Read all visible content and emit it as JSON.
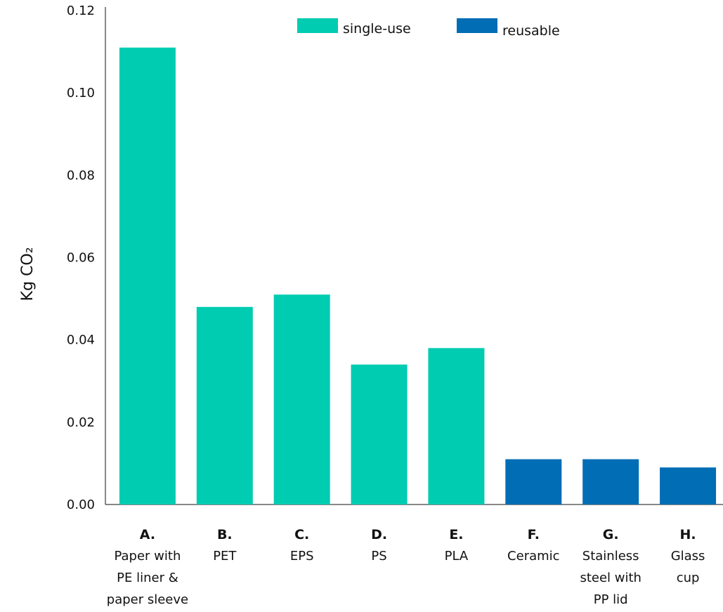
{
  "chart_data": {
    "type": "bar",
    "ylabel": "Kg CO₂",
    "ylim": [
      0,
      0.12
    ],
    "yticks": [
      "0.00",
      "0.02",
      "0.04",
      "0.06",
      "0.08",
      "0.10",
      "0.12"
    ],
    "categories": [
      {
        "letter": "A.",
        "name": [
          "Paper with",
          "PE liner &",
          "paper sleeve"
        ],
        "group": "single-use"
      },
      {
        "letter": "B.",
        "name": [
          "PET"
        ],
        "group": "single-use"
      },
      {
        "letter": "C.",
        "name": [
          "EPS"
        ],
        "group": "single-use"
      },
      {
        "letter": "D.",
        "name": [
          "PS"
        ],
        "group": "single-use"
      },
      {
        "letter": "E.",
        "name": [
          "PLA"
        ],
        "group": "single-use"
      },
      {
        "letter": "F.",
        "name": [
          "Ceramic"
        ],
        "group": "reusable"
      },
      {
        "letter": "G.",
        "name": [
          "Stainless",
          "steel with",
          "PP lid"
        ],
        "group": "reusable"
      },
      {
        "letter": "H.",
        "name": [
          "Glass",
          "cup"
        ],
        "group": "reusable"
      }
    ],
    "values": [
      0.111,
      0.048,
      0.051,
      0.034,
      0.038,
      0.011,
      0.011,
      0.009
    ],
    "legend": [
      {
        "label": "single-use",
        "color": "#00CCB1"
      },
      {
        "label": "reusable",
        "color": "#006DB5"
      }
    ],
    "legend_position": "top-center",
    "grid": false
  }
}
